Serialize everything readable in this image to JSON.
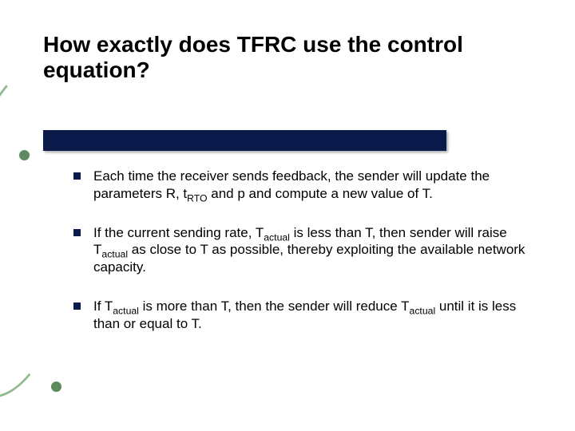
{
  "slide": {
    "title": "How exactly does TFRC use the control equation?",
    "title_color": "#000000",
    "title_fontsize": 28,
    "underline_color": "#0a1a4a",
    "underline_width": 505,
    "underline_height": 26,
    "bullets": [
      {
        "text_html": "Each time the receiver sends feedback, the sender will update the parameters R, t<sub>RTO</sub> and p and compute a new value of T."
      },
      {
        "text_html": "If the current sending rate, T<sub>actual</sub> is less than T, then sender will raise T<sub>actual</sub> as close to T as possible, thereby exploiting the available network capacity."
      },
      {
        "text_html": "If T<sub>actual</sub> is more than T, then the sender will reduce T<sub>actual</sub> until it is less than or equal to T."
      }
    ],
    "bullet_marker_color": "#0a1a4a",
    "bullet_fontsize": 17,
    "body_text_color": "#000000",
    "background_color": "#ffffff",
    "swoosh_color": "#8fb98f",
    "swoosh_dot_color": "#5e8a5e"
  }
}
